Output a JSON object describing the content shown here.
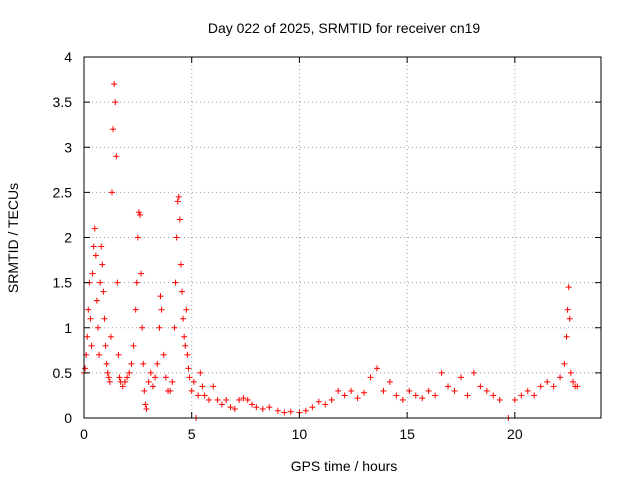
{
  "chart_data": {
    "type": "scatter",
    "title": "Day 022 of 2025, SRMTID for receiver cn19",
    "xlabel": "GPS time / hours",
    "ylabel": "SRMTID / TECUs",
    "xlim": [
      0,
      24
    ],
    "ylim": [
      0,
      4
    ],
    "xticks": [
      0,
      5,
      10,
      15,
      20
    ],
    "yticks": [
      0,
      0.5,
      1,
      1.5,
      2,
      2.5,
      3,
      3.5,
      4
    ],
    "grid": true,
    "marker": "+",
    "series_color": "#ff0000",
    "series": [
      {
        "name": "SRMTID",
        "points": [
          [
            0.0,
            0.5
          ],
          [
            0.05,
            0.55
          ],
          [
            0.1,
            0.7
          ],
          [
            0.15,
            0.9
          ],
          [
            0.2,
            1.2
          ],
          [
            0.25,
            1.5
          ],
          [
            0.3,
            1.1
          ],
          [
            0.35,
            0.8
          ],
          [
            0.4,
            1.6
          ],
          [
            0.45,
            1.9
          ],
          [
            0.5,
            2.1
          ],
          [
            0.55,
            1.8
          ],
          [
            0.6,
            1.3
          ],
          [
            0.65,
            1.0
          ],
          [
            0.7,
            0.7
          ],
          [
            0.75,
            1.5
          ],
          [
            0.8,
            1.9
          ],
          [
            0.85,
            1.7
          ],
          [
            0.9,
            1.4
          ],
          [
            0.95,
            1.1
          ],
          [
            1.0,
            0.8
          ],
          [
            1.05,
            0.6
          ],
          [
            1.1,
            0.5
          ],
          [
            1.15,
            0.45
          ],
          [
            1.2,
            0.4
          ],
          [
            1.25,
            0.9
          ],
          [
            1.3,
            2.5
          ],
          [
            1.35,
            3.2
          ],
          [
            1.4,
            3.7
          ],
          [
            1.45,
            3.5
          ],
          [
            1.5,
            2.9
          ],
          [
            1.55,
            1.5
          ],
          [
            1.6,
            0.7
          ],
          [
            1.65,
            0.45
          ],
          [
            1.7,
            0.4
          ],
          [
            1.8,
            0.35
          ],
          [
            1.9,
            0.4
          ],
          [
            2.0,
            0.45
          ],
          [
            2.1,
            0.5
          ],
          [
            2.2,
            0.6
          ],
          [
            2.3,
            0.8
          ],
          [
            2.4,
            1.2
          ],
          [
            2.45,
            1.5
          ],
          [
            2.5,
            2.0
          ],
          [
            2.55,
            2.28
          ],
          [
            2.6,
            2.25
          ],
          [
            2.65,
            1.6
          ],
          [
            2.7,
            1.0
          ],
          [
            2.75,
            0.6
          ],
          [
            2.8,
            0.3
          ],
          [
            2.85,
            0.15
          ],
          [
            2.9,
            0.1
          ],
          [
            3.0,
            0.4
          ],
          [
            3.1,
            0.5
          ],
          [
            3.2,
            0.35
          ],
          [
            3.3,
            0.45
          ],
          [
            3.4,
            0.6
          ],
          [
            3.5,
            1.0
          ],
          [
            3.55,
            1.35
          ],
          [
            3.6,
            1.2
          ],
          [
            3.7,
            0.7
          ],
          [
            3.8,
            0.45
          ],
          [
            3.9,
            0.3
          ],
          [
            4.0,
            0.3
          ],
          [
            4.1,
            0.4
          ],
          [
            4.2,
            1.0
          ],
          [
            4.25,
            1.5
          ],
          [
            4.3,
            2.0
          ],
          [
            4.35,
            2.4
          ],
          [
            4.4,
            2.45
          ],
          [
            4.45,
            2.2
          ],
          [
            4.5,
            1.7
          ],
          [
            4.55,
            1.4
          ],
          [
            4.6,
            1.1
          ],
          [
            4.65,
            0.9
          ],
          [
            4.7,
            0.8
          ],
          [
            4.75,
            1.2
          ],
          [
            4.8,
            0.7
          ],
          [
            4.85,
            0.55
          ],
          [
            4.9,
            0.45
          ],
          [
            5.0,
            0.3
          ],
          [
            5.1,
            0.4
          ],
          [
            5.2,
            0.0
          ],
          [
            5.3,
            0.25
          ],
          [
            5.4,
            0.5
          ],
          [
            5.5,
            0.35
          ],
          [
            5.6,
            0.25
          ],
          [
            5.8,
            0.2
          ],
          [
            6.0,
            0.35
          ],
          [
            6.2,
            0.2
          ],
          [
            6.4,
            0.15
          ],
          [
            6.6,
            0.2
          ],
          [
            6.8,
            0.12
          ],
          [
            7.0,
            0.1
          ],
          [
            7.2,
            0.2
          ],
          [
            7.4,
            0.22
          ],
          [
            7.6,
            0.2
          ],
          [
            7.8,
            0.15
          ],
          [
            8.0,
            0.12
          ],
          [
            8.3,
            0.1
          ],
          [
            8.6,
            0.12
          ],
          [
            9.0,
            0.08
          ],
          [
            9.3,
            0.06
          ],
          [
            9.6,
            0.07
          ],
          [
            10.0,
            0.06
          ],
          [
            10.3,
            0.08
          ],
          [
            10.6,
            0.12
          ],
          [
            10.9,
            0.18
          ],
          [
            11.2,
            0.15
          ],
          [
            11.5,
            0.2
          ],
          [
            11.8,
            0.3
          ],
          [
            12.1,
            0.25
          ],
          [
            12.4,
            0.3
          ],
          [
            12.7,
            0.22
          ],
          [
            13.0,
            0.28
          ],
          [
            13.3,
            0.45
          ],
          [
            13.6,
            0.55
          ],
          [
            13.9,
            0.3
          ],
          [
            14.2,
            0.4
          ],
          [
            14.5,
            0.25
          ],
          [
            14.8,
            0.2
          ],
          [
            15.1,
            0.3
          ],
          [
            15.4,
            0.25
          ],
          [
            15.7,
            0.22
          ],
          [
            16.0,
            0.3
          ],
          [
            16.3,
            0.25
          ],
          [
            16.6,
            0.5
          ],
          [
            16.9,
            0.35
          ],
          [
            17.2,
            0.3
          ],
          [
            17.5,
            0.45
          ],
          [
            17.8,
            0.25
          ],
          [
            18.1,
            0.5
          ],
          [
            18.4,
            0.35
          ],
          [
            18.7,
            0.3
          ],
          [
            19.0,
            0.25
          ],
          [
            19.3,
            0.2
          ],
          [
            19.7,
            0.0
          ],
          [
            20.0,
            0.2
          ],
          [
            20.3,
            0.25
          ],
          [
            20.6,
            0.3
          ],
          [
            20.9,
            0.25
          ],
          [
            21.2,
            0.35
          ],
          [
            21.5,
            0.4
          ],
          [
            21.8,
            0.35
          ],
          [
            22.1,
            0.45
          ],
          [
            22.3,
            0.6
          ],
          [
            22.4,
            0.9
          ],
          [
            22.45,
            1.2
          ],
          [
            22.5,
            1.45
          ],
          [
            22.55,
            1.1
          ],
          [
            22.6,
            0.5
          ],
          [
            22.7,
            0.4
          ],
          [
            22.8,
            0.35
          ],
          [
            22.9,
            0.35
          ]
        ]
      }
    ]
  }
}
